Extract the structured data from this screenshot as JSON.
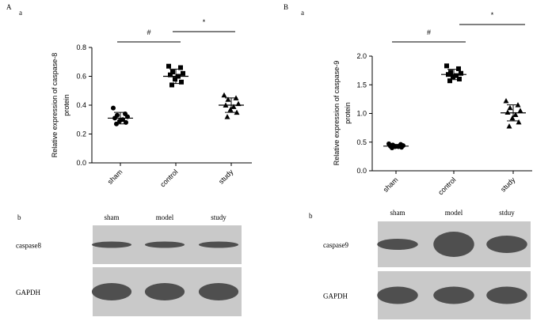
{
  "chart_data": [
    {
      "type": "dotplot",
      "panel": "A",
      "subpanel": "a",
      "y_label": [
        "Relative expression of  caspase-8",
        "protein"
      ],
      "categories": [
        "sham",
        "control",
        "study"
      ],
      "markers": [
        "circle",
        "square",
        "triangle"
      ],
      "color": "#000000",
      "groups": [
        [
          0.38,
          0.34,
          0.33,
          0.32,
          0.31,
          0.3,
          0.29,
          0.28,
          0.27
        ],
        [
          0.67,
          0.66,
          0.63,
          0.62,
          0.61,
          0.6,
          0.58,
          0.56,
          0.54
        ],
        [
          0.47,
          0.45,
          0.44,
          0.41,
          0.4,
          0.39,
          0.37,
          0.35,
          0.32
        ]
      ],
      "means": [
        0.31,
        0.6,
        0.4
      ],
      "sd": [
        0.04,
        0.05,
        0.05
      ],
      "significance": [
        "#",
        "*"
      ],
      "ylim": [
        0,
        0.8
      ],
      "yticks": [
        {
          "value": 0,
          "label": "0.0"
        },
        {
          "value": 0.2,
          "label": "0.2"
        },
        {
          "value": 0.4,
          "label": "0.4"
        },
        {
          "value": 0.6,
          "label": "0.6"
        },
        {
          "value": 0.8,
          "label": "0.8"
        }
      ]
    },
    {
      "type": "dotplot",
      "panel": "B",
      "subpanel": "a",
      "y_label": [
        "Relative expression of  caspase-9",
        "protein"
      ],
      "categories": [
        "sham",
        "control",
        "study"
      ],
      "markers": [
        "circle",
        "square",
        "triangle"
      ],
      "color": "#000000",
      "groups": [
        [
          0.47,
          0.46,
          0.45,
          0.44,
          0.43,
          0.42,
          0.42,
          0.41,
          0.4
        ],
        [
          1.83,
          1.78,
          1.72,
          1.7,
          1.68,
          1.66,
          1.64,
          1.6,
          1.57
        ],
        [
          1.22,
          1.15,
          1.1,
          1.05,
          1.02,
          0.98,
          0.92,
          0.85,
          0.78
        ]
      ],
      "means": [
        0.43,
        1.68,
        1.01
      ],
      "sd": [
        0.03,
        0.09,
        0.14
      ],
      "significance": [
        "#",
        "*"
      ],
      "ylim": [
        0,
        2.0
      ],
      "yticks": [
        {
          "value": 0,
          "label": "0.0"
        },
        {
          "value": 0.5,
          "label": "0.5"
        },
        {
          "value": 1.0,
          "label": "1.0"
        },
        {
          "value": 1.5,
          "label": "1.5"
        },
        {
          "value": 2.0,
          "label": "2.0"
        }
      ]
    }
  ],
  "blots": [
    {
      "letter": "b",
      "lanes": [
        "sham",
        "model",
        "study"
      ],
      "rows": [
        "caspase8",
        "GAPDH"
      ]
    },
    {
      "letter": "b",
      "lanes": [
        "sham",
        "model",
        "stduy"
      ],
      "rows": [
        "caspase9",
        "GAPDH"
      ]
    }
  ]
}
